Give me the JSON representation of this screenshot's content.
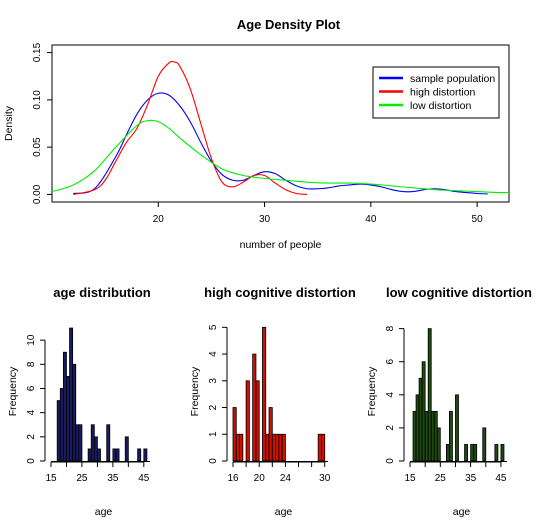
{
  "chart_data": [
    {
      "type": "line",
      "title": "Age Density Plot",
      "xlabel": "number of people",
      "ylabel": "Density",
      "xlim": [
        10,
        53
      ],
      "ylim": [
        -0.008,
        0.158
      ],
      "xticks": [
        20,
        30,
        40,
        50
      ],
      "yticks": [
        0.0,
        0.05,
        0.1,
        0.15
      ],
      "ytick_labels": [
        "0.00",
        "0.05",
        "0.10",
        "0.15"
      ],
      "legend_position": "top-right",
      "grid": false,
      "series": [
        {
          "name": "sample population",
          "color": "#0000ff",
          "x": [
            12,
            14,
            16,
            17,
            18,
            19,
            20,
            21,
            22,
            23,
            24,
            25,
            26,
            27,
            28,
            29,
            30,
            31,
            32,
            33,
            34,
            35,
            36,
            37,
            38,
            39,
            40,
            41,
            42,
            43,
            44,
            45,
            46,
            47,
            48,
            49,
            50,
            51
          ],
          "y": [
            0.001,
            0.006,
            0.04,
            0.063,
            0.085,
            0.1,
            0.107,
            0.105,
            0.094,
            0.077,
            0.055,
            0.035,
            0.021,
            0.015,
            0.015,
            0.02,
            0.024,
            0.022,
            0.015,
            0.009,
            0.006,
            0.006,
            0.007,
            0.009,
            0.01,
            0.011,
            0.01,
            0.008,
            0.005,
            0.003,
            0.003,
            0.005,
            0.006,
            0.005,
            0.003,
            0.002,
            0.001,
            0.0005
          ]
        },
        {
          "name": "high distortion",
          "color": "#ff0000",
          "x": [
            12,
            14,
            15,
            16,
            17,
            18,
            19,
            20,
            21,
            21.5,
            22,
            23,
            24,
            25,
            26,
            27,
            28,
            29,
            30,
            31,
            32,
            33,
            34
          ],
          "y": [
            0.0,
            0.005,
            0.015,
            0.035,
            0.055,
            0.07,
            0.095,
            0.125,
            0.139,
            0.14,
            0.136,
            0.112,
            0.075,
            0.038,
            0.013,
            0.008,
            0.013,
            0.02,
            0.02,
            0.012,
            0.005,
            0.001,
            0.0
          ]
        },
        {
          "name": "low distortion",
          "color": "#00ee00",
          "x": [
            10,
            12,
            14,
            16,
            18,
            19,
            20,
            21,
            22,
            24,
            26,
            28,
            30,
            32,
            34,
            36,
            38,
            40,
            42,
            44,
            46,
            48,
            50,
            52,
            53
          ],
          "y": [
            0.003,
            0.01,
            0.025,
            0.05,
            0.073,
            0.078,
            0.077,
            0.07,
            0.06,
            0.042,
            0.027,
            0.02,
            0.017,
            0.015,
            0.013,
            0.012,
            0.012,
            0.011,
            0.009,
            0.007,
            0.005,
            0.004,
            0.003,
            0.002,
            0.002
          ]
        }
      ]
    },
    {
      "type": "bar",
      "title": "age distribution",
      "xlabel": "age",
      "ylabel": "Frequency",
      "color": "#1a1a60",
      "xlim": [
        15,
        47
      ],
      "ylim": [
        0,
        11.5
      ],
      "xticks": [
        15,
        25,
        35,
        45
      ],
      "xtick_minor": [
        20,
        30,
        40
      ],
      "yticks": [
        0,
        2,
        4,
        6,
        8,
        10
      ],
      "bin_width": 1,
      "x": [
        18,
        19,
        20,
        21,
        22,
        23,
        24,
        25,
        28,
        29,
        30,
        31,
        34,
        36,
        37,
        40,
        44,
        46
      ],
      "values": [
        5,
        6,
        9,
        7,
        11,
        8,
        3,
        3,
        1,
        3,
        2,
        1,
        3,
        1,
        1,
        2,
        1,
        1
      ]
    },
    {
      "type": "bar",
      "title": "high cognitive distortion",
      "xlabel": "age",
      "ylabel": "Frequency",
      "color": "#cc1100",
      "xlim": [
        16,
        30.5
      ],
      "ylim": [
        0,
        5.2
      ],
      "xticks": [
        16,
        18,
        20,
        22,
        24,
        26,
        28,
        30
      ],
      "xtick_labels": [
        "16",
        "",
        "20",
        "",
        "24",
        "",
        "",
        "30"
      ],
      "yticks": [
        0,
        1,
        2,
        3,
        4,
        5
      ],
      "bin_width": 0.5,
      "x": [
        16.5,
        17,
        17.5,
        18.5,
        19.5,
        20,
        21,
        21.5,
        22,
        22.5,
        23,
        23.5,
        24,
        29.5,
        30
      ],
      "values": [
        2,
        1,
        1,
        3,
        4,
        3,
        5,
        1,
        2,
        1,
        1,
        1,
        1,
        1,
        1
      ]
    },
    {
      "type": "bar",
      "title": "low cognitive distortion",
      "xlabel": "age",
      "ylabel": "Frequency",
      "color": "#1f4a10",
      "xlim": [
        15,
        47
      ],
      "ylim": [
        0,
        8.4
      ],
      "xticks": [
        15,
        25,
        35,
        45
      ],
      "xtick_minor": [
        20,
        30,
        40
      ],
      "yticks": [
        0,
        2,
        4,
        6,
        8
      ],
      "bin_width": 1,
      "x": [
        17,
        18,
        19,
        20,
        21,
        22,
        23,
        24,
        25,
        28,
        29,
        31,
        34,
        36,
        37,
        40,
        44,
        46
      ],
      "values": [
        3,
        4,
        5,
        6,
        3,
        8,
        3,
        3,
        2,
        1,
        3,
        4,
        1,
        1,
        1,
        2,
        1,
        1
      ]
    }
  ]
}
